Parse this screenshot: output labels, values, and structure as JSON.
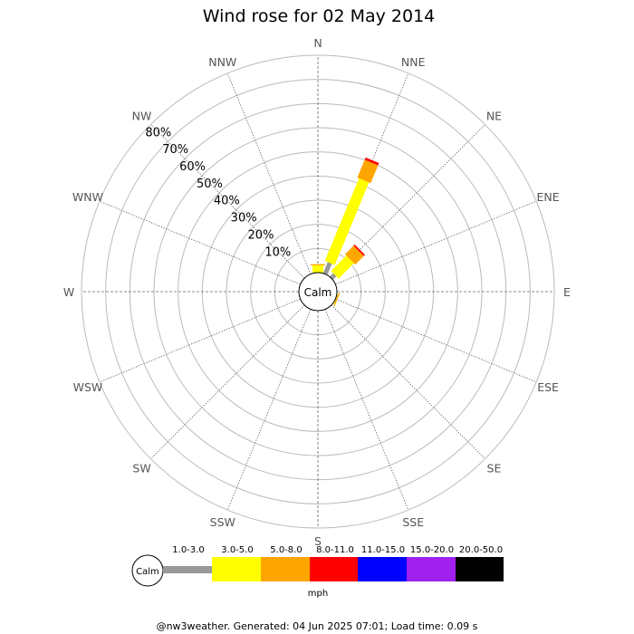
{
  "chart_data": {
    "type": "windrose",
    "title": "Wind rose for 02 May 2014",
    "directions": [
      "N",
      "NNE",
      "NE",
      "ENE",
      "E",
      "ESE",
      "SE",
      "SSE",
      "S",
      "SSW",
      "SW",
      "WSW",
      "W",
      "WNW",
      "NW",
      "NNW"
    ],
    "rings": [
      10,
      20,
      30,
      40,
      50,
      60,
      70,
      80
    ],
    "ring_labels": [
      "10%",
      "20%",
      "30%",
      "40%",
      "50%",
      "60%",
      "70%",
      "80%"
    ],
    "calm_label": "Calm",
    "speed_bins": [
      {
        "label": "1.0-3.0",
        "color": "#999999"
      },
      {
        "label": "3.0-5.0",
        "color": "#ffff00"
      },
      {
        "label": "5.0-8.0",
        "color": "#ffa500"
      },
      {
        "label": "8.0-11.0",
        "color": "#ff0000"
      },
      {
        "label": "11.0-15.0",
        "color": "#0000ff"
      },
      {
        "label": "15.0-20.0",
        "color": "#a020f0"
      },
      {
        "label": "20.0-50.0",
        "color": "#000000"
      }
    ],
    "speed_unit": "mph",
    "series": [
      {
        "direction": "N",
        "values": [
          0,
          3,
          0.5,
          0,
          0,
          0,
          0
        ]
      },
      {
        "direction": "NNE",
        "values": [
          5,
          37,
          8,
          1,
          0,
          0,
          0
        ]
      },
      {
        "direction": "NE",
        "values": [
          2,
          9,
          5,
          0.7,
          0,
          0,
          0
        ]
      },
      {
        "direction": "ESE",
        "values": [
          0,
          0.3,
          0.5,
          0,
          0,
          0,
          0
        ]
      }
    ]
  },
  "footer": "@nw3weather. Generated: 04 Jun 2025 07:01; Load time: 0.09 s"
}
